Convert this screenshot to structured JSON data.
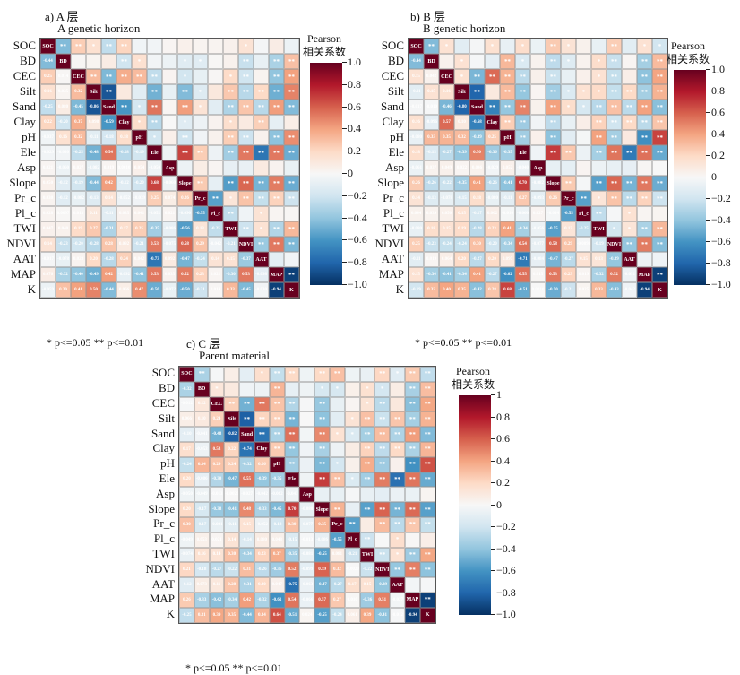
{
  "figure": {
    "significance_note": "* p<=0.05  ** p<=0.01",
    "colorbar_title_line1": "Pearson",
    "colorbar_title_line2": "相关系数",
    "colormap": [
      "#053061",
      "#2166ac",
      "#4393c3",
      "#92c5de",
      "#d1e5f0",
      "#f7f7f7",
      "#fddbc7",
      "#f4a582",
      "#d6604d",
      "#b2182b",
      "#67001f"
    ]
  },
  "chart_data": [
    {
      "type": "heatmap",
      "panel": "a",
      "title": "a) A 层",
      "subtitle": "A genetic horizon",
      "variables": [
        "SOC",
        "BD",
        "CEC",
        "Silt",
        "Sand",
        "Clay",
        "pH",
        "Ele",
        "Asp",
        "Slope",
        "Pr_c",
        "Pl_c",
        "TWI",
        "NDVI",
        "AAT",
        "MAP",
        "K"
      ],
      "colorbar_ticks": [
        "1.0",
        "0.8",
        "0.6",
        "0.4",
        "0.2",
        "0",
        "−0.2",
        "−0.4",
        "−0.6",
        "−0.8",
        "−1.0"
      ],
      "vmin": -1,
      "vmax": 1,
      "lower_triangle": [
        [],
        [
          -0.44
        ],
        [
          0.25,
          0.014
        ],
        [
          0.16,
          0.025,
          0.32
        ],
        [
          -0.25,
          0.08,
          -0.45,
          -0.86
        ],
        [
          0.22,
          -0.2,
          0.37,
          0.098,
          -0.59
        ],
        [
          -0.037,
          0.16,
          0.32,
          -0.11,
          -0.18,
          0.18
        ],
        [
          -0.029,
          -0.03,
          -0.25,
          -0.48,
          0.54,
          -0.28,
          -0.19
        ],
        [
          0.021,
          -0.06,
          0.027,
          -0.082,
          0.019,
          0.001,
          0.054,
          -0.05
        ],
        [
          0.05,
          -0.12,
          -0.19,
          -0.44,
          0.42,
          -0.12,
          -0.2,
          0.68,
          -0.06
        ],
        [
          0.03,
          -0.12,
          -0.082,
          -0.13,
          0.14,
          -0.052,
          -0.039,
          0.25,
          0.074,
          0.26
        ],
        [
          0.028,
          0.0097,
          0.013,
          0.11,
          -0.11,
          0.035,
          0.041,
          -0.052,
          0.021,
          -0.09,
          -0.55
        ],
        [
          0.047,
          0.04,
          0.19,
          0.27,
          -0.31,
          0.17,
          0.25,
          -0.35,
          -0.086,
          -0.56,
          0.13,
          -0.25
        ],
        [
          0.14,
          -0.23,
          -0.2,
          -0.28,
          0.28,
          0.092,
          -0.21,
          0.53,
          -0.075,
          0.58,
          0.29,
          -0.042,
          -0.21
        ],
        [
          -0.017,
          -0.078,
          0.028,
          0.2,
          -0.28,
          0.24,
          0.042,
          -0.73,
          0.092,
          -0.47,
          -0.24,
          0.14,
          0.15,
          -0.37
        ],
        [
          0.076,
          -0.32,
          -0.4,
          -0.49,
          0.42,
          -0.092,
          -0.41,
          0.53,
          0.035,
          0.52,
          0.23,
          0.021,
          -0.3,
          0.53,
          -0.098
        ],
        [
          -0.059,
          0.3,
          0.41,
          0.5,
          -0.44,
          0.066,
          0.47,
          -0.5,
          -0.072,
          -0.5,
          -0.21,
          0.014,
          0.33,
          -0.45,
          -0.03,
          -0.94
        ]
      ]
    },
    {
      "type": "heatmap",
      "panel": "b",
      "title": "b) B 层",
      "subtitle": "B genetic horizon",
      "variables": [
        "SOC",
        "BD",
        "CEC",
        "Silt",
        "Sand",
        "Clay",
        "pH",
        "Ele",
        "Asp",
        "Slope",
        "Pr_c",
        "Pl_c",
        "TWI",
        "NDVI",
        "AAT",
        "MAP",
        "K"
      ],
      "colorbar_ticks": [
        "1.0",
        "0.8",
        "0.6",
        "0.4",
        "0.2",
        "0",
        "−0.2",
        "−0.4",
        "−0.6",
        "−0.8",
        "−1.0"
      ],
      "vmin": -1,
      "vmax": 1,
      "lower_triangle": [
        [],
        [
          -0.44
        ],
        [
          0.15,
          0.042
        ],
        [
          -0.11,
          0.15,
          0.16
        ],
        [
          -0.017,
          -0.01,
          -0.46,
          -0.8
        ],
        [
          0.16,
          -0.096,
          0.57,
          0.1,
          -0.68
        ],
        [
          -0.08,
          0.33,
          0.35,
          0.32,
          -0.39,
          0.25
        ],
        [
          0.18,
          -0.15,
          -0.27,
          -0.39,
          0.5,
          -0.36,
          -0.35
        ],
        [
          -0.061,
          0.037,
          0.049,
          0.022,
          0.046,
          -0.029,
          0.052,
          -0.04
        ],
        [
          0.26,
          -0.26,
          -0.22,
          -0.35,
          0.41,
          -0.26,
          -0.41,
          0.7,
          -0.082
        ],
        [
          0.14,
          -0.13,
          -0.078,
          -0.15,
          0.18,
          -0.08,
          -0.11,
          0.27,
          -0.093,
          0.26
        ],
        [
          0.044,
          0.039,
          0.05,
          0.15,
          -0.17,
          0.062,
          -0.016,
          -0.06,
          0.027,
          -0.014,
          -0.55
        ],
        [
          -0.08,
          0.18,
          0.15,
          0.19,
          -0.28,
          0.23,
          0.41,
          -0.34,
          -0.056,
          -0.55,
          0.13,
          -0.25
        ],
        [
          0.25,
          -0.23,
          -0.24,
          -0.24,
          0.3,
          -0.2,
          -0.34,
          0.54,
          -0.077,
          0.58,
          0.29,
          -0.009,
          -0.19
        ],
        [
          -0.11,
          0.019,
          0.064,
          0.2,
          -0.27,
          0.2,
          0.097,
          -0.71,
          -0.084,
          -0.47,
          -0.27,
          0.15,
          0.13,
          -0.39
        ],
        [
          0.15,
          -0.34,
          -0.41,
          -0.34,
          0.41,
          -0.27,
          -0.62,
          0.55,
          0.015,
          0.53,
          0.23,
          0.019,
          -0.32,
          0.52,
          -0.051
        ],
        [
          -0.19,
          0.32,
          0.4,
          0.35,
          -0.42,
          0.28,
          0.68,
          -0.51,
          0.001,
          -0.5,
          -0.21,
          0.025,
          0.33,
          -0.43,
          -0.042,
          -0.94
        ]
      ]
    },
    {
      "type": "heatmap",
      "panel": "c",
      "title": "c) C 层",
      "subtitle": "Parent material",
      "variables": [
        "SOC",
        "BD",
        "CEC",
        "Silt",
        "Sand",
        "Clay",
        "pH",
        "Ele",
        "Asp",
        "Slope",
        "Pr_c",
        "Pl_c",
        "TWI",
        "NDVI",
        "AAT",
        "MAP",
        "K"
      ],
      "colorbar_ticks": [
        "1",
        "0.8",
        "0.6",
        "0.4",
        "0.2",
        "0",
        "−0.2",
        "−0.4",
        "−0.6",
        "−0.8",
        "−1.0"
      ],
      "vmin": -1,
      "vmax": 1,
      "lower_triangle": [
        [],
        [
          -0.32
        ],
        [
          -0.012,
          0.12
        ],
        [
          0.066,
          0.1,
          0.24
        ],
        [
          -0.1,
          -0.041,
          -0.48,
          -0.82
        ],
        [
          0.17,
          -0.053,
          0.53,
          0.22,
          -0.74
        ],
        [
          -0.24,
          0.34,
          0.29,
          0.24,
          -0.32,
          0.26
        ],
        [
          0.2,
          -0.086,
          -0.3,
          -0.47,
          0.55,
          -0.39,
          -0.35
        ],
        [
          -0.05,
          -0.049,
          -0.013,
          -0.0026,
          -0.027,
          -0.042,
          -0.062,
          -0.043
        ],
        [
          0.2,
          -0.17,
          -0.38,
          -0.41,
          0.48,
          -0.33,
          -0.45,
          0.7,
          -0.08
        ],
        [
          0.3,
          -0.17,
          -0.081,
          -0.11,
          0.15,
          -0.052,
          -0.18,
          0.3,
          -0.077,
          0.35
        ],
        [
          -0.049,
          0.053,
          0.021,
          0.14,
          -0.14,
          0.08,
          0.048,
          -0.15,
          -0.013,
          -0.086,
          -0.55
        ],
        [
          -0.074,
          0.16,
          0.14,
          0.3,
          -0.34,
          0.23,
          0.37,
          -0.35,
          -0.081,
          -0.55,
          0.081,
          -0.21
        ],
        [
          0.21,
          -0.18,
          -0.27,
          -0.22,
          0.31,
          -0.26,
          -0.36,
          0.52,
          -0.099,
          0.59,
          0.32,
          -0.002,
          -0.22
        ],
        [
          -0.12,
          0.073,
          0.11,
          0.28,
          -0.31,
          0.2,
          0.047,
          -0.75,
          -0.063,
          -0.47,
          -0.27,
          0.17,
          0.15,
          -0.39
        ],
        [
          0.26,
          -0.33,
          -0.42,
          -0.34,
          0.42,
          -0.32,
          -0.61,
          0.54,
          -0.066,
          0.57,
          0.27,
          0.01,
          -0.36,
          0.51,
          -0.027
        ],
        [
          -0.25,
          0.31,
          0.39,
          0.35,
          -0.44,
          0.34,
          0.64,
          -0.51,
          0.024,
          -0.55,
          -0.24,
          0.061,
          0.39,
          -0.41,
          -0.012,
          -0.94
        ]
      ]
    }
  ]
}
